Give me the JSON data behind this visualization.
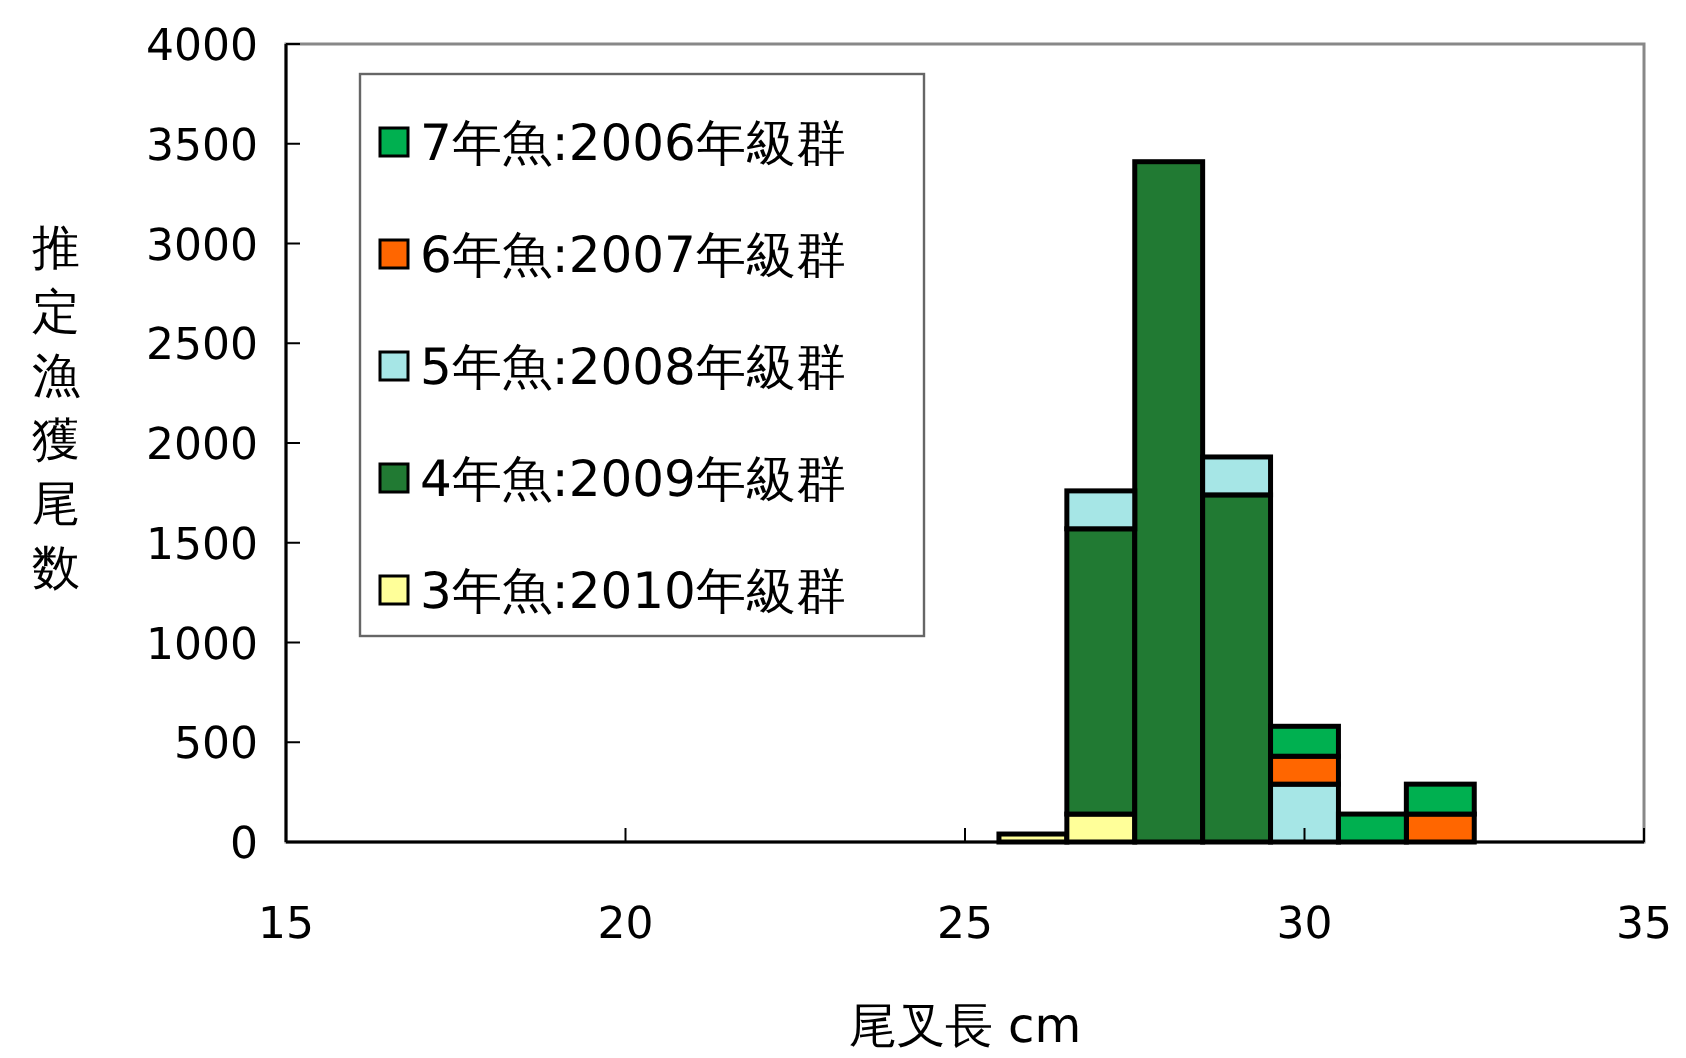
{
  "chart_data": {
    "type": "bar",
    "stacked": true,
    "xlabel": "尾叉長 cm",
    "ylabel": "推定漁獲尾数",
    "x": [
      26,
      27,
      28,
      29,
      30,
      31,
      32
    ],
    "xlim": [
      15,
      35
    ],
    "xticks": [
      15,
      20,
      25,
      30,
      35
    ],
    "ylim": [
      0,
      4000
    ],
    "yticks": [
      0,
      500,
      1000,
      1500,
      2000,
      2500,
      3000,
      3500,
      4000
    ],
    "grid": false,
    "legend": "top left",
    "series": [
      {
        "name": "3年魚:2010年級群",
        "color": "#ffff99",
        "values": [
          40,
          140,
          null,
          null,
          null,
          null,
          null
        ]
      },
      {
        "name": "4年魚:2009年級群",
        "color": "#217a33",
        "values": [
          null,
          1430,
          3410,
          1740,
          null,
          null,
          null
        ]
      },
      {
        "name": "5年魚:2008年級群",
        "color": "#a6e6e6",
        "values": [
          null,
          190,
          null,
          190,
          290,
          null,
          null
        ]
      },
      {
        "name": "6年魚:2007年級群",
        "color": "#ff6600",
        "values": [
          null,
          null,
          null,
          null,
          140,
          null,
          140
        ]
      },
      {
        "name": "7年魚:2006年級群",
        "color": "#00b050",
        "values": [
          null,
          null,
          null,
          null,
          150,
          140,
          150
        ]
      }
    ]
  }
}
